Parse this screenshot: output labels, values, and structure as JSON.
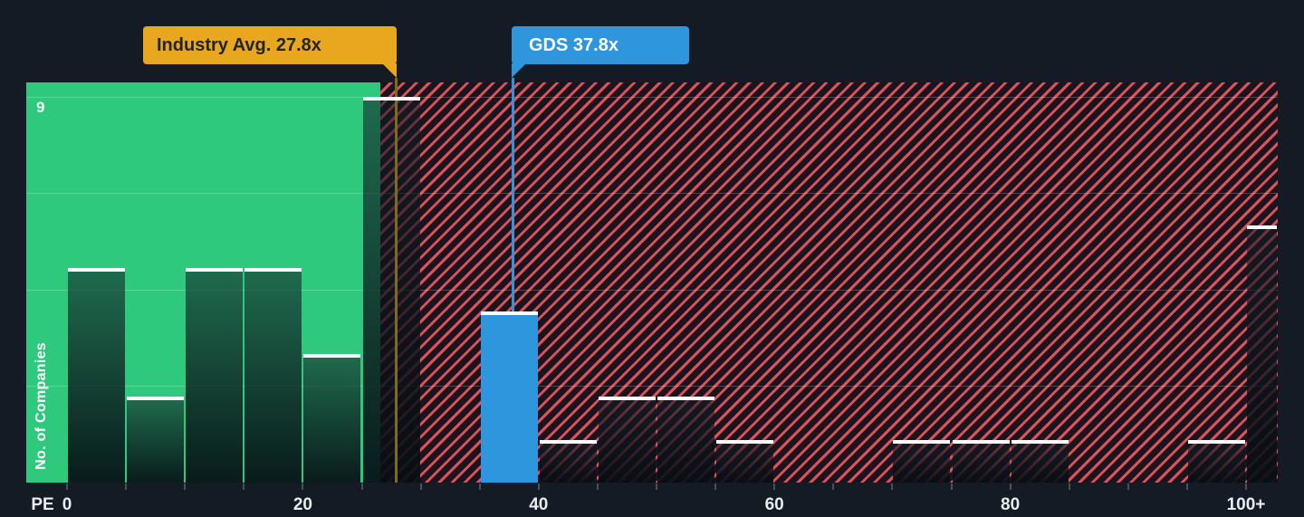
{
  "page": {
    "background": "#151b24"
  },
  "chart_data": {
    "type": "bar",
    "subtype": "histogram",
    "xlabel": "PE",
    "ylabel": "No. of Companies",
    "y_max_label": "9",
    "ylim": [
      0,
      9.33
    ],
    "grid": "on",
    "gridline_values": [
      2.25,
      4.5,
      6.75,
      9
    ],
    "legend_position": "none",
    "x_minor_tick_step": 5,
    "x_ticks": [
      {
        "value": 0,
        "label": "0"
      },
      {
        "value": 20,
        "label": "20"
      },
      {
        "value": 40,
        "label": "40"
      },
      {
        "value": 60,
        "label": "60"
      },
      {
        "value": 80,
        "label": "80"
      },
      {
        "value": 100,
        "label": "100+"
      }
    ],
    "bins": [
      {
        "range": "0-5",
        "from": 0,
        "to": 5,
        "count": 5
      },
      {
        "range": "5-10",
        "from": 5,
        "to": 10,
        "count": 2
      },
      {
        "range": "10-15",
        "from": 10,
        "to": 15,
        "count": 5
      },
      {
        "range": "15-20",
        "from": 15,
        "to": 20,
        "count": 5
      },
      {
        "range": "20-25",
        "from": 20,
        "to": 25,
        "count": 3
      },
      {
        "range": "25-30",
        "from": 25,
        "to": 30,
        "count": 9
      },
      {
        "range": "30-35",
        "from": 30,
        "to": 35,
        "count": 0
      },
      {
        "range": "35-40",
        "from": 35,
        "to": 40,
        "count": 4,
        "highlight": true
      },
      {
        "range": "40-45",
        "from": 40,
        "to": 45,
        "count": 1
      },
      {
        "range": "45-50",
        "from": 45,
        "to": 50,
        "count": 2
      },
      {
        "range": "50-55",
        "from": 50,
        "to": 55,
        "count": 2
      },
      {
        "range": "55-60",
        "from": 55,
        "to": 60,
        "count": 1
      },
      {
        "range": "60-65",
        "from": 60,
        "to": 65,
        "count": 0
      },
      {
        "range": "65-70",
        "from": 65,
        "to": 70,
        "count": 0
      },
      {
        "range": "70-75",
        "from": 70,
        "to": 75,
        "count": 1
      },
      {
        "range": "75-80",
        "from": 75,
        "to": 80,
        "count": 1
      },
      {
        "range": "80-85",
        "from": 80,
        "to": 85,
        "count": 1
      },
      {
        "range": "85-90",
        "from": 85,
        "to": 90,
        "count": 0
      },
      {
        "range": "90-95",
        "from": 90,
        "to": 95,
        "count": 0
      },
      {
        "range": "95-100",
        "from": 95,
        "to": 100,
        "count": 1
      },
      {
        "range": "100+",
        "from": 100,
        "to": 102.7,
        "count": 6
      }
    ],
    "annotations": {
      "industry_avg": {
        "label": "Industry Avg. 27.8x",
        "value": 27.8
      },
      "company": {
        "label": "GDS 37.8x",
        "value": 37.8
      }
    }
  },
  "colors": {
    "background": "#151b24",
    "below_avg_region": "#2fc97e",
    "hatch_stripe": "#dd5259",
    "hatch_background": "#1b141e",
    "bar_cap": "#ffffff",
    "highlight_bar": "#2d96dd",
    "industry_callout": "#e9a71f",
    "industry_callout_text": "#20252e",
    "company_callout": "#2d96dd",
    "company_callout_text": "#ffffff",
    "industry_line": "#7d6b21",
    "axis_text": "#e9edf1",
    "tick": "#49505e"
  }
}
